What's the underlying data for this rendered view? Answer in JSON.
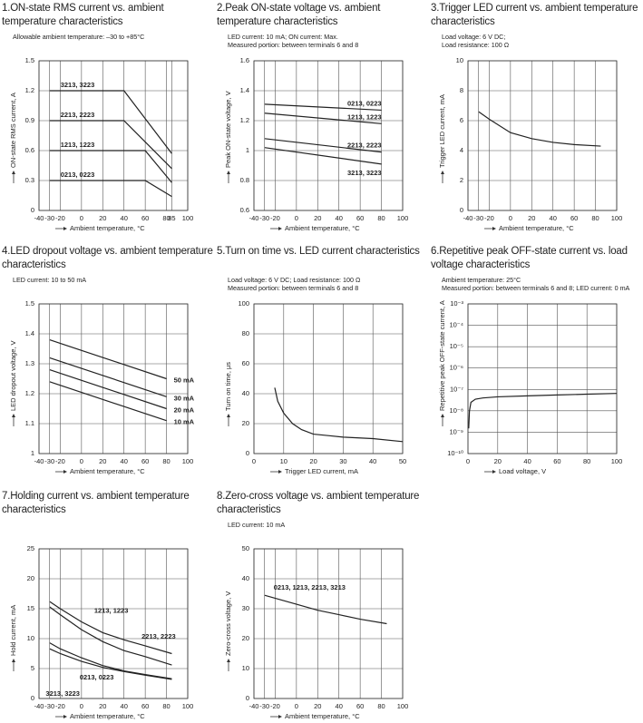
{
  "chart_data": [
    {
      "type": "line",
      "title": "1.ON-state RMS current vs. ambient temperature characteristics",
      "notes": [
        "Allowable ambient temperature: –30 to +85°C"
      ],
      "xlabel": "Ambient temperature, °C",
      "ylabel": "ON-state RMS current, A",
      "xlim": [
        -40,
        100
      ],
      "xticks": [
        -40,
        -30,
        -20,
        0,
        20,
        40,
        60,
        80,
        85,
        100
      ],
      "ylim": [
        0,
        1.5
      ],
      "yticks": [
        0,
        0.3,
        0.6,
        0.9,
        1.2,
        1.5
      ],
      "grid": true,
      "color": "#222",
      "series": [
        {
          "name": "3213,  3223",
          "x": [
            -30,
            40,
            85
          ],
          "values": [
            1.2,
            1.2,
            0.57
          ]
        },
        {
          "name": "2213,  2223",
          "x": [
            -30,
            40,
            85
          ],
          "values": [
            0.9,
            0.9,
            0.42
          ]
        },
        {
          "name": "1213,  1223",
          "x": [
            -30,
            60,
            85
          ],
          "values": [
            0.6,
            0.6,
            0.28
          ]
        },
        {
          "name": "0213,  0223",
          "x": [
            -30,
            60,
            85
          ],
          "values": [
            0.3,
            0.3,
            0.14
          ]
        }
      ]
    },
    {
      "type": "line",
      "title": "2.Peak ON-state voltage vs. ambient temperature characteristics",
      "notes": [
        "LED current: 10 mA; ON current: Max.",
        "Measured portion: between terminals 6 and 8"
      ],
      "xlabel": "Ambient temperature, °C",
      "ylabel": "Peak ON-state voltage, V",
      "xlim": [
        -40,
        100
      ],
      "xticks": [
        -40,
        -30,
        -20,
        0,
        20,
        40,
        60,
        80,
        100
      ],
      "ylim": [
        0.6,
        1.6
      ],
      "yticks": [
        0.6,
        0.8,
        1,
        1.2,
        1.4,
        1.6
      ],
      "grid": true,
      "color": "#222",
      "series": [
        {
          "name": "0213,  0223",
          "x": [
            -30,
            80
          ],
          "values": [
            1.31,
            1.27
          ]
        },
        {
          "name": "1213,  1223",
          "x": [
            -30,
            80
          ],
          "values": [
            1.25,
            1.18
          ]
        },
        {
          "name": "2213,  2223",
          "x": [
            -30,
            80
          ],
          "values": [
            1.08,
            0.99
          ]
        },
        {
          "name": "3213,  3223",
          "x": [
            -30,
            80
          ],
          "values": [
            1.02,
            0.91
          ]
        }
      ]
    },
    {
      "type": "line",
      "title": "3.Trigger LED current vs. ambient temperature characteristics",
      "notes": [
        "Load voltage: 6 V DC;",
        "Load resistance: 100 Ω"
      ],
      "xlabel": "Ambient temperature, °C",
      "ylabel": "Trigger LED current, mA",
      "xlim": [
        -40,
        100
      ],
      "xticks": [
        -40,
        -30,
        -20,
        0,
        20,
        40,
        60,
        80,
        100
      ],
      "ylim": [
        0,
        10
      ],
      "yticks": [
        0,
        2,
        4,
        6,
        8,
        10
      ],
      "grid": true,
      "color": "#222",
      "x": [
        -30,
        -20,
        0,
        20,
        40,
        60,
        85
      ],
      "values": [
        6.6,
        6.1,
        5.2,
        4.8,
        4.55,
        4.4,
        4.3
      ]
    },
    {
      "type": "line",
      "title": "4.LED dropout voltage vs. ambient temperature characteristics",
      "notes": [
        "LED current: 10 to 50 mA"
      ],
      "xlabel": "Ambient temperature, °C",
      "ylabel": "LED dropout voltage, V",
      "xlim": [
        -40,
        100
      ],
      "xticks": [
        -40,
        -30,
        -20,
        0,
        20,
        40,
        60,
        80,
        100
      ],
      "ylim": [
        1,
        1.5
      ],
      "yticks": [
        1,
        1.1,
        1.2,
        1.3,
        1.4,
        1.5
      ],
      "grid": true,
      "color": "#222",
      "series": [
        {
          "name": "50 mA",
          "x": [
            -30,
            80
          ],
          "values": [
            1.38,
            1.25
          ]
        },
        {
          "name": "30 mA",
          "x": [
            -30,
            80
          ],
          "values": [
            1.32,
            1.19
          ]
        },
        {
          "name": "20 mA",
          "x": [
            -30,
            80
          ],
          "values": [
            1.28,
            1.15
          ]
        },
        {
          "name": "10 mA",
          "x": [
            -30,
            80
          ],
          "values": [
            1.24,
            1.11
          ]
        }
      ]
    },
    {
      "type": "line",
      "title": "5.Turn on time vs. LED current characteristics",
      "notes": [
        "Load voltage: 6 V DC; Load resistance: 100 Ω",
        "Measured portion: between terminals 6 and 8"
      ],
      "xlabel": "Trigger LED current, mA",
      "ylabel": "Turn on time, μs",
      "xlim": [
        0,
        50
      ],
      "xticks": [
        0,
        10,
        20,
        30,
        40,
        50
      ],
      "ylim": [
        0,
        100
      ],
      "yticks": [
        0,
        20,
        40,
        60,
        80,
        100
      ],
      "grid": true,
      "color": "#222",
      "x": [
        7,
        8,
        10,
        13,
        16,
        20,
        25,
        30,
        40,
        50
      ],
      "values": [
        44,
        35,
        27,
        20,
        16,
        13,
        12,
        11,
        10,
        8
      ]
    },
    {
      "type": "line",
      "title": "6.Repetitive peak OFF-state current vs. load voltage characteristics",
      "notes": [
        "Ambient temperature: 25°C",
        "Measured portion: between terminals 6 and 8; LED current: 0 mA"
      ],
      "xlabel": "Load voltage, V",
      "ylabel": "Repetitive peak OFF-state current, A",
      "xlim": [
        0,
        100
      ],
      "xticks": [
        0,
        20,
        40,
        60,
        80,
        100
      ],
      "ylim": [
        1e-10,
        0.001
      ],
      "log_y": true,
      "yticks": [
        {
          "value": 1e-10,
          "label": "10⁻¹⁰"
        },
        {
          "value": 1e-09,
          "label": "10⁻⁹"
        },
        {
          "value": 1e-08,
          "label": "10⁻⁸"
        },
        {
          "value": 1e-07,
          "label": "10⁻⁷"
        },
        {
          "value": 1e-06,
          "label": "10⁻⁶"
        },
        {
          "value": 1e-05,
          "label": "10⁻⁵"
        },
        {
          "value": 0.0001,
          "label": "10⁻⁴"
        },
        {
          "value": 0.001,
          "label": "10⁻³"
        }
      ],
      "grid": true,
      "color": "#222",
      "x": [
        0.5,
        1,
        2,
        5,
        10,
        20,
        40,
        60,
        80,
        100
      ],
      "values": [
        1.5e-09,
        1e-08,
        2.5e-08,
        3.5e-08,
        4e-08,
        4.5e-08,
        5e-08,
        5.5e-08,
        6e-08,
        6.5e-08
      ]
    },
    {
      "type": "line",
      "title": "7.Holding current vs. ambient temperature characteristics",
      "notes": [],
      "xlabel": "Ambient temperature, °C",
      "ylabel": "Hold current, mA",
      "xlim": [
        -40,
        100
      ],
      "xticks": [
        -40,
        -30,
        -20,
        0,
        20,
        40,
        60,
        80,
        100
      ],
      "ylim": [
        0,
        25
      ],
      "yticks": [
        0,
        5,
        10,
        15,
        20,
        25
      ],
      "grid": true,
      "color": "#222",
      "series": [
        {
          "name": "1213,  1223",
          "x": [
            -30,
            -20,
            0,
            20,
            40,
            60,
            85
          ],
          "values": [
            16.2,
            15,
            12.8,
            11,
            9.8,
            8.8,
            7.5
          ]
        },
        {
          "name": "2213,  2223",
          "x": [
            -30,
            -20,
            0,
            20,
            40,
            60,
            85
          ],
          "values": [
            15.3,
            14,
            11.5,
            9.5,
            8,
            7,
            5.6
          ]
        },
        {
          "name": "3213,  3223",
          "x": [
            -30,
            -20,
            0,
            20,
            40,
            60,
            85
          ],
          "values": [
            9.3,
            8.3,
            6.8,
            5.5,
            4.6,
            4,
            3.3
          ]
        },
        {
          "name": "0213,  0223",
          "x": [
            -30,
            -20,
            0,
            20,
            40,
            60,
            85
          ],
          "values": [
            8.3,
            7.5,
            6.2,
            5.2,
            4.5,
            3.9,
            3.2
          ]
        }
      ]
    },
    {
      "type": "line",
      "title": "8.Zero-cross voltage vs. ambient temperature characteristics",
      "notes": [
        "LED current: 10 mA"
      ],
      "xlabel": "Ambient temperature, °C",
      "ylabel": "Zero-cross voltage, V",
      "xlim": [
        -40,
        100
      ],
      "xticks": [
        -40,
        -30,
        -20,
        0,
        20,
        40,
        60,
        80,
        100
      ],
      "ylim": [
        0,
        50
      ],
      "yticks": [
        0,
        10,
        20,
        30,
        40,
        50
      ],
      "grid": true,
      "color": "#222",
      "series": [
        {
          "name": "0213,  1213,  2213,  3213",
          "x": [
            -30,
            0,
            20,
            40,
            60,
            85
          ],
          "values": [
            34.5,
            31.5,
            29.5,
            28,
            26.5,
            25
          ]
        }
      ]
    }
  ]
}
